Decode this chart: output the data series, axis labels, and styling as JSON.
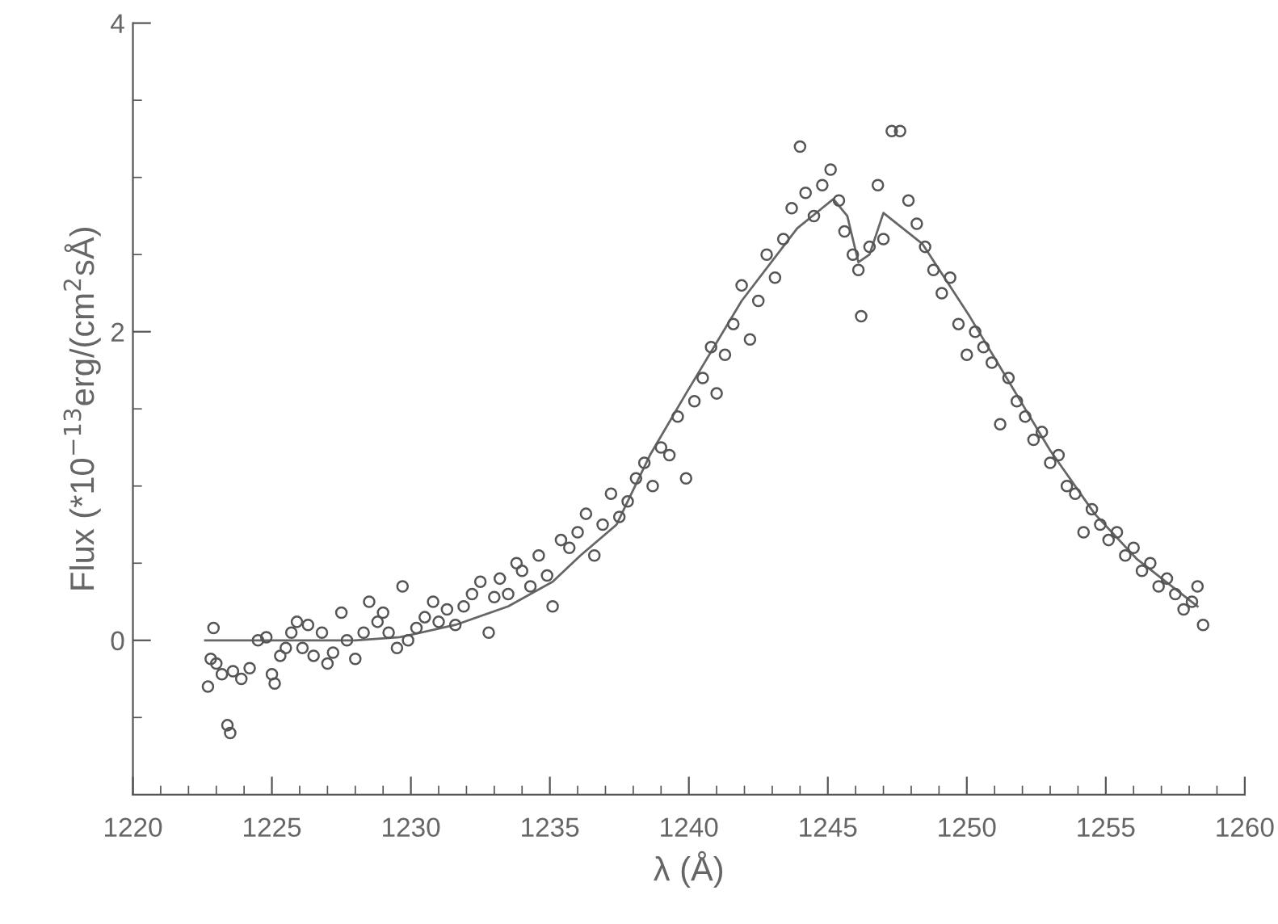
{
  "chart_data": {
    "type": "scatter",
    "xlabel": "λ (Å)",
    "ylabel": "Flux (*10$^{−13}$erg/(cm$^{2}$sÅ)",
    "xlim": [
      1220,
      1260
    ],
    "ylim": [
      -1,
      4
    ],
    "xticks": [
      1220,
      {
        "value": 1221,
        "label": null
      },
      {
        "value": 1222,
        "label": null
      },
      {
        "value": 1223,
        "label": null
      },
      {
        "value": 1224,
        "label": null
      },
      1225,
      {
        "value": 1226,
        "label": null
      },
      {
        "value": 1227,
        "label": null
      },
      {
        "value": 1228,
        "label": null
      },
      {
        "value": 1229,
        "label": null
      },
      1230,
      {
        "value": 1231,
        "label": null
      },
      {
        "value": 1232,
        "label": null
      },
      {
        "value": 1233,
        "label": null
      },
      {
        "value": 1234,
        "label": null
      },
      1235,
      {
        "value": 1236,
        "label": null
      },
      {
        "value": 1237,
        "label": null
      },
      {
        "value": 1238,
        "label": null
      },
      {
        "value": 1239,
        "label": null
      },
      1240,
      {
        "value": 1241,
        "label": null
      },
      {
        "value": 1242,
        "label": null
      },
      {
        "value": 1243,
        "label": null
      },
      {
        "value": 1244,
        "label": null
      },
      1245,
      {
        "value": 1246,
        "label": null
      },
      {
        "value": 1247,
        "label": null
      },
      {
        "value": 1248,
        "label": null
      },
      {
        "value": 1249,
        "label": null
      },
      1250,
      {
        "value": 1251,
        "label": null
      },
      {
        "value": 1252,
        "label": null
      },
      {
        "value": 1253,
        "label": null
      },
      {
        "value": 1254,
        "label": null
      },
      1255,
      {
        "value": 1256,
        "label": null
      },
      {
        "value": 1257,
        "label": null
      },
      {
        "value": 1258,
        "label": null
      },
      {
        "value": 1259,
        "label": null
      },
      1260
    ],
    "yticks": [
      {
        "value": -0.5,
        "label": null
      },
      0,
      {
        "value": 0.5,
        "label": null
      },
      {
        "value": 1,
        "label": null
      },
      {
        "value": 1.5,
        "label": null
      },
      2,
      {
        "value": 2.5,
        "label": null
      },
      {
        "value": 3,
        "label": null
      },
      {
        "value": 3.5,
        "label": null
      },
      4
    ],
    "grid": false,
    "series": [
      {
        "marker": "circle",
        "color": "#555555",
        "x": [
          1222.7,
          1222.8,
          1222.9,
          1223.0,
          1223.2,
          1223.4,
          1223.5,
          1223.6,
          1223.9,
          1224.2,
          1224.5,
          1224.8,
          1225.0,
          1225.1,
          1225.3,
          1225.5,
          1225.7,
          1225.9,
          1226.1,
          1226.3,
          1226.5,
          1226.8,
          1227.0,
          1227.2,
          1227.5,
          1227.7,
          1228.0,
          1228.3,
          1228.5,
          1228.8,
          1229.0,
          1229.2,
          1229.5,
          1229.7,
          1229.9,
          1230.2,
          1230.5,
          1230.8,
          1231.0,
          1231.3,
          1231.6,
          1231.9,
          1232.2,
          1232.5,
          1232.8,
          1233.0,
          1233.2,
          1233.5,
          1233.8,
          1234.0,
          1234.3,
          1234.6,
          1234.9,
          1235.1,
          1235.4,
          1235.7,
          1236.0,
          1236.3,
          1236.6,
          1236.9,
          1237.2,
          1237.5,
          1237.8,
          1238.1,
          1238.4,
          1238.7,
          1239.0,
          1239.3,
          1239.6,
          1239.9,
          1240.2,
          1240.5,
          1240.8,
          1241.0,
          1241.3,
          1241.6,
          1241.9,
          1242.2,
          1242.5,
          1242.8,
          1243.1,
          1243.4,
          1243.7,
          1244.0,
          1244.2,
          1244.5,
          1244.8,
          1245.1,
          1245.4,
          1245.6,
          1245.9,
          1246.1,
          1246.2,
          1246.5,
          1246.8,
          1247.0,
          1247.3,
          1247.6,
          1247.9,
          1248.2,
          1248.5,
          1248.8,
          1249.1,
          1249.4,
          1249.7,
          1250.0,
          1250.3,
          1250.6,
          1250.9,
          1251.2,
          1251.5,
          1251.8,
          1252.1,
          1252.4,
          1252.7,
          1253.0,
          1253.3,
          1253.6,
          1253.9,
          1254.2,
          1254.5,
          1254.8,
          1255.1,
          1255.4,
          1255.7,
          1256.0,
          1256.3,
          1256.6,
          1256.9,
          1257.2,
          1257.5,
          1257.8,
          1258.1,
          1258.3,
          1258.5
        ],
        "values": [
          -0.3,
          -0.12,
          0.08,
          -0.15,
          -0.22,
          -0.55,
          -0.6,
          -0.2,
          -0.25,
          -0.18,
          0.0,
          0.02,
          -0.22,
          -0.28,
          -0.1,
          -0.05,
          0.05,
          0.12,
          -0.05,
          0.1,
          -0.1,
          0.05,
          -0.15,
          -0.08,
          0.18,
          0.0,
          -0.12,
          0.05,
          0.25,
          0.12,
          0.18,
          0.05,
          -0.05,
          0.35,
          0.0,
          0.08,
          0.15,
          0.25,
          0.12,
          0.2,
          0.1,
          0.22,
          0.3,
          0.38,
          0.05,
          0.28,
          0.4,
          0.3,
          0.5,
          0.45,
          0.35,
          0.55,
          0.42,
          0.22,
          0.65,
          0.6,
          0.7,
          0.82,
          0.55,
          0.75,
          0.95,
          0.8,
          0.9,
          1.05,
          1.15,
          1.0,
          1.25,
          1.2,
          1.45,
          1.05,
          1.55,
          1.7,
          1.9,
          1.6,
          1.85,
          2.05,
          2.3,
          1.95,
          2.2,
          2.5,
          2.35,
          2.6,
          2.8,
          3.2,
          2.9,
          2.75,
          2.95,
          3.05,
          2.85,
          2.65,
          2.5,
          2.4,
          2.1,
          2.55,
          2.95,
          2.6,
          3.3,
          3.3,
          2.85,
          2.7,
          2.55,
          2.4,
          2.25,
          2.35,
          2.05,
          1.85,
          2.0,
          1.9,
          1.8,
          1.4,
          1.7,
          1.55,
          1.45,
          1.3,
          1.35,
          1.15,
          1.2,
          1.0,
          0.95,
          0.7,
          0.85,
          0.75,
          0.65,
          0.7,
          0.55,
          0.6,
          0.45,
          0.5,
          0.35,
          0.4,
          0.3,
          0.2,
          0.25,
          0.35,
          0.1
        ]
      },
      {
        "type": "line",
        "marker": "none",
        "line_style": "solid",
        "color": "#666666",
        "x": [
          1222.6,
          1225,
          1228,
          1229.6,
          1231.6,
          1233.5,
          1235.1,
          1236.1,
          1237.4,
          1238.6,
          1239.9,
          1241.9,
          1243.9,
          1245.2,
          1245.7,
          1246.1,
          1246.5,
          1247.0,
          1248.4,
          1250.1,
          1251.5,
          1253.0,
          1254.6,
          1256.1,
          1258.3
        ],
        "values": [
          0,
          0,
          0,
          0.02,
          0.1,
          0.22,
          0.38,
          0.55,
          0.75,
          1.2,
          1.6,
          2.2,
          2.67,
          2.86,
          2.75,
          2.45,
          2.5,
          2.77,
          2.57,
          2.1,
          1.68,
          1.23,
          0.82,
          0.53,
          0.22
        ]
      }
    ]
  }
}
